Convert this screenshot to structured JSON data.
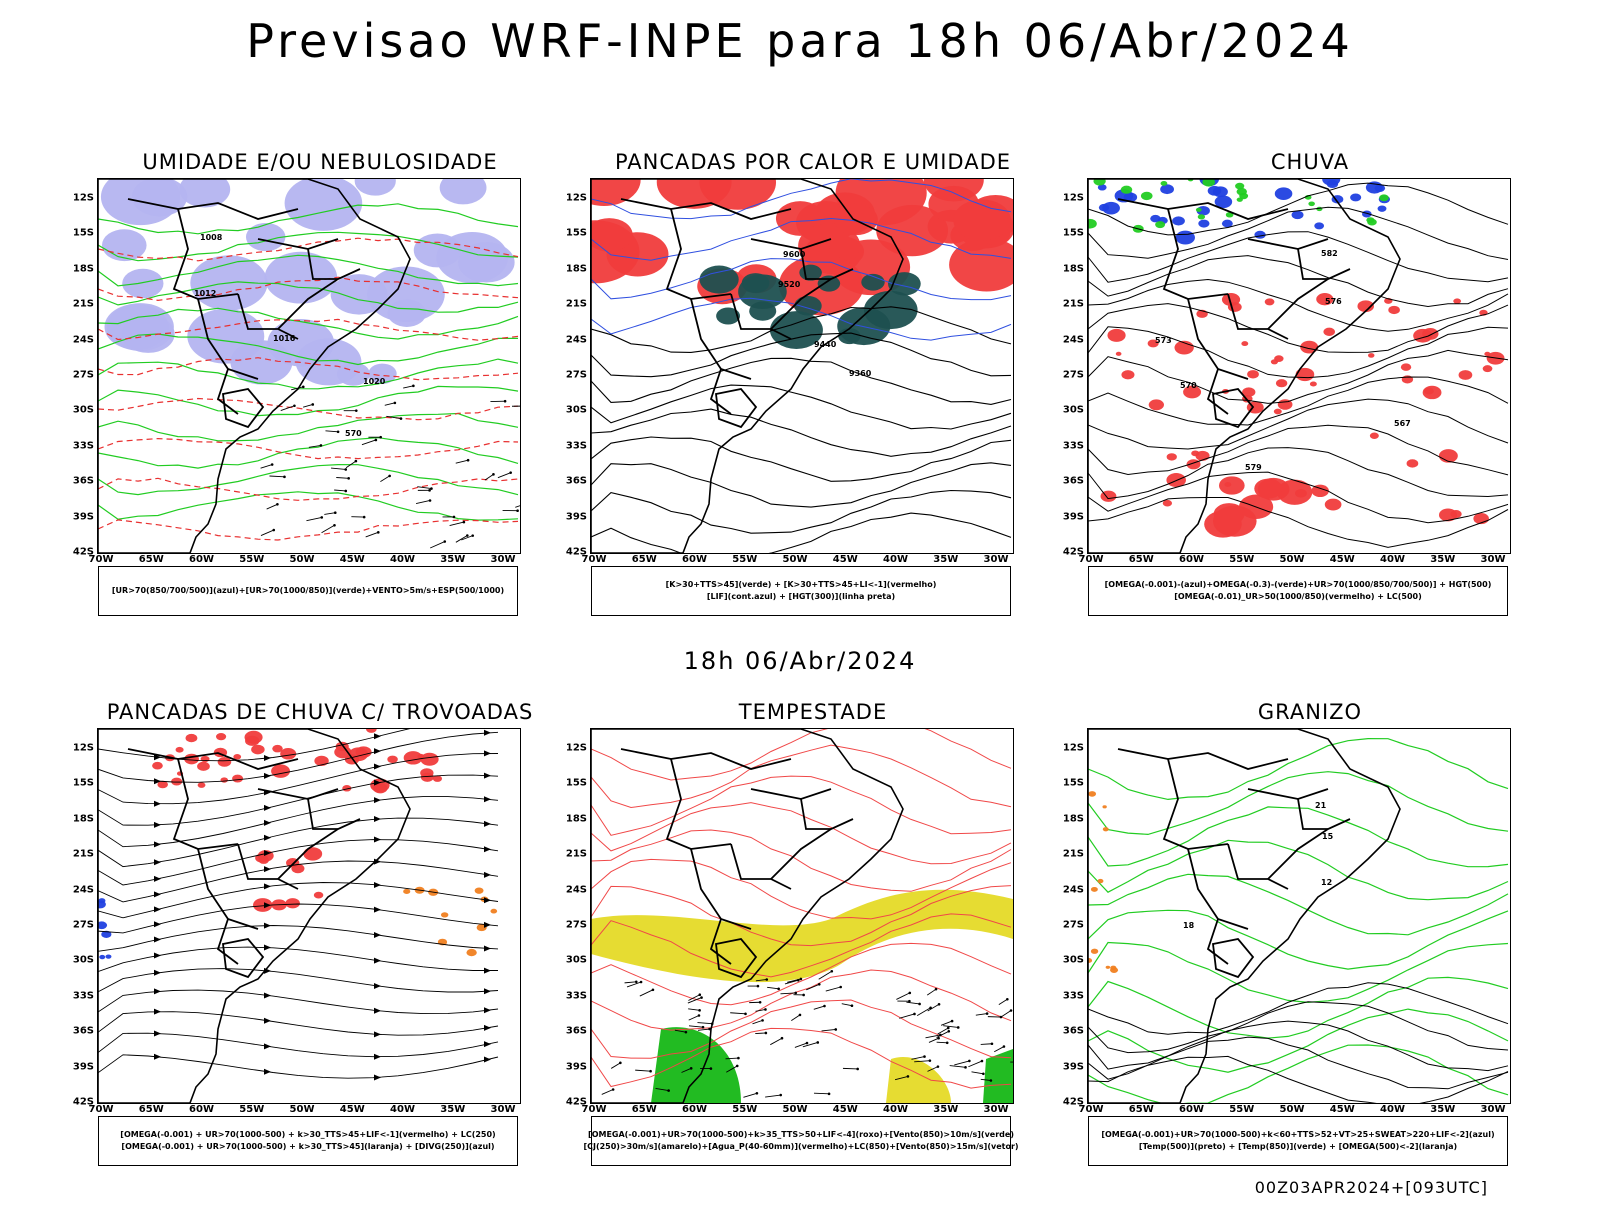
{
  "header": {
    "title": "Previsao WRF-INPE  para 18h 06/Abr/2024"
  },
  "middle": {
    "title": "18h 06/Abr/2024"
  },
  "footer": {
    "text": "00Z03APR2024+[093UTC]"
  },
  "axes": {
    "lat_labels": [
      "12S",
      "15S",
      "18S",
      "21S",
      "24S",
      "27S",
      "30S",
      "33S",
      "36S",
      "39S",
      "42S"
    ],
    "lon_labels": [
      "70W",
      "65W",
      "60W",
      "55W",
      "50W",
      "45W",
      "40W",
      "35W",
      "30W"
    ]
  },
  "panels": [
    {
      "id": "umidade",
      "title": "UMIDADE E/OU NEBULOSIDADE",
      "legend": [
        "[UR>70(850/700/500)](azul)+[UR>70(1000/850)](verde)+VENTO>5m/s+ESP(500/1000)"
      ],
      "contour_labels": [
        "1008",
        "1012",
        "1016",
        "1020",
        "570"
      ],
      "colors": {
        "fill": "#b4b4f0",
        "contour": "#22cc22",
        "thickness": "#e83030"
      }
    },
    {
      "id": "pancadas-calor",
      "title": "PANCADAS POR CALOR E UMIDADE",
      "legend": [
        "[K>30+TTS>45](verde) + [K>30+TTS>45+LI<-1](vermelho)",
        "[LIF](cont.azul) + [HGT(300)](linha preta)"
      ],
      "contour_labels": [
        "9600",
        "9520",
        "9440",
        "9360"
      ],
      "colors": {
        "fill_red": "#f03c3c",
        "fill_green": "#1e5050",
        "contour": "#3050e0"
      }
    },
    {
      "id": "chuva",
      "title": "CHUVA",
      "legend": [
        "[OMEGA(-0.001)-(azul)+OMEGA(-0.3)-(verde)+UR>70(1000/850/700/500)] + HGT(500)",
        "[OMEGA(-0.01)_UR>50(1000/850)(vermelho) + LC(500)"
      ],
      "contour_labels": [
        "582",
        "576",
        "573",
        "570",
        "567",
        "579"
      ],
      "colors": {
        "fill_red": "#f03c3c",
        "fill_blue": "#2040e0",
        "fill_green": "#22cc22"
      }
    },
    {
      "id": "trovoadas",
      "title": "PANCADAS DE CHUVA C/ TROVOADAS",
      "legend": [
        "[OMEGA(-0.001) + UR>70(1000-500) + k>30_TTS>45+LIF<-1](vermelho) + LC(250)",
        "[OMEGA(-0.001) + UR>70(1000-500) + k>30_TTS>45](laranja) + [DIVG(250)](azul)"
      ],
      "contour_labels": [],
      "colors": {
        "fill_red": "#f03c3c",
        "fill_orange": "#f08020",
        "fill_blue": "#2040e0"
      }
    },
    {
      "id": "tempestade",
      "title": "TEMPESTADE",
      "legend": [
        "[OMEGA(-0.001)+UR>70(1000-500)+k>35_TTS>50+LIF<-4](roxo)+[Vento(850)>10m/s](verde)",
        "[CJ(250)>30m/s](amarelo)+[Agua_P(40-60mm)](vermelho)+LC(850)+[Vento(850)>15m/s](vetor)"
      ],
      "contour_labels": [],
      "colors": {
        "fill_yellow": "#e6dc32",
        "fill_green": "#22bb22",
        "contour": "#f04848"
      }
    },
    {
      "id": "granizo",
      "title": "GRANIZO",
      "legend": [
        "[OMEGA(-0.001)+UR>70(1000-500)+k<60+TTS>52+VT>25+SWEAT>220+LIF<-2](azul)",
        "[Temp(500)](preto) + [Temp(850)](verde) + [OMEGA(500)<-2](laranja)"
      ],
      "contour_labels": [
        "21",
        "15",
        "12",
        "18"
      ],
      "colors": {
        "contour_green": "#22cc22",
        "fill_orange": "#f08020"
      }
    }
  ]
}
